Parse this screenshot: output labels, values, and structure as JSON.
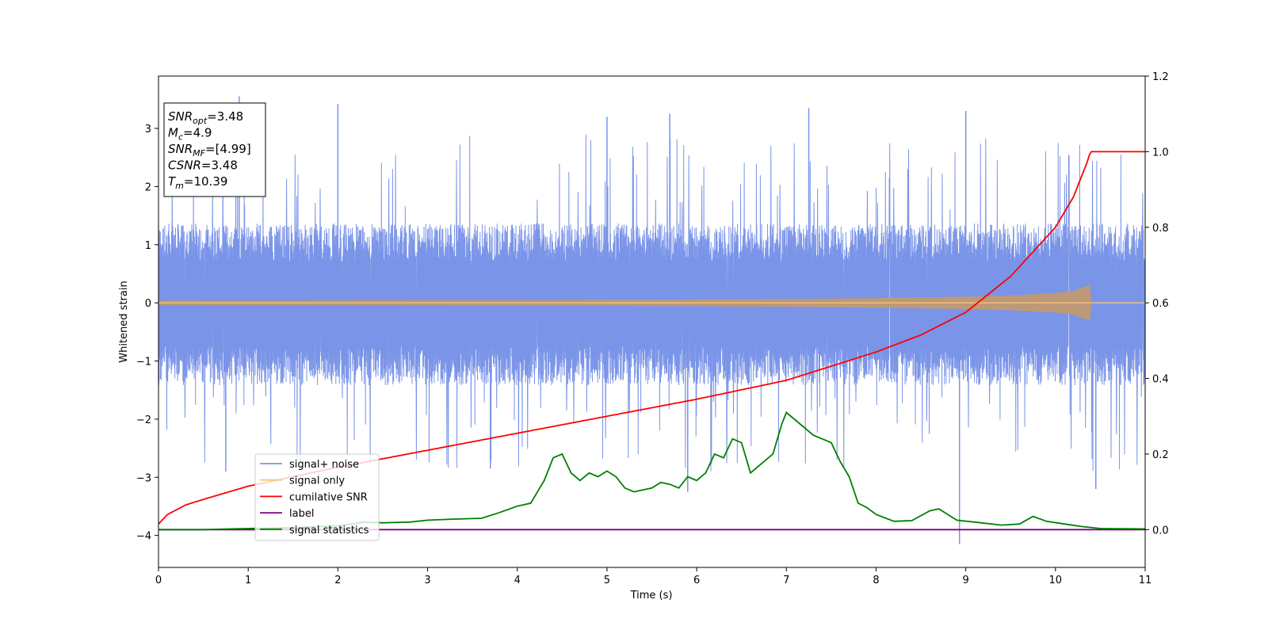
{
  "chart_data": {
    "type": "line",
    "xlabel": "Time (s)",
    "ylabel": "Whitened strain",
    "xlim": [
      0,
      11
    ],
    "ylim": [
      -4.55,
      3.9
    ],
    "y2lim": [
      -0.1,
      1.2
    ],
    "x_ticks": [
      0,
      1,
      2,
      3,
      4,
      5,
      6,
      7,
      8,
      9,
      10,
      11
    ],
    "x_tick_labels": [
      "0",
      "1",
      "2",
      "3",
      "4",
      "5",
      "6",
      "7",
      "8",
      "9",
      "10",
      "11"
    ],
    "y_ticks": [
      -4,
      -3,
      -2,
      -1,
      0,
      1,
      2,
      3
    ],
    "y_tick_labels": [
      "−4",
      "−3",
      "−2",
      "−1",
      "0",
      "1",
      "2",
      "3"
    ],
    "y2_ticks": [
      0,
      0.2,
      0.4,
      0.6,
      0.8,
      1.0,
      1.2
    ],
    "y2_tick_labels": [
      "0.0",
      "0.2",
      "0.4",
      "0.6",
      "0.8",
      "1.0",
      "1.2"
    ],
    "grid": false,
    "legend_position": "lower-left",
    "annotation": {
      "lines": [
        {
          "sym": "SNR",
          "sub": "opt",
          "val": "=3.48"
        },
        {
          "sym": "M",
          "sub": "c",
          "val": "=4.9"
        },
        {
          "sym": "SNR",
          "sub": "MF",
          "val": "=[4.99]"
        },
        {
          "sym": "CSNR",
          "sub": "",
          "val": "=3.48"
        },
        {
          "sym": "T",
          "sub": "m",
          "val": "=10.39"
        }
      ]
    },
    "series": [
      {
        "name": "signal+ noise",
        "color": "#7a94e8",
        "axis": "left",
        "kind": "noise",
        "band_envelope": {
          "x": [
            0,
            11
          ],
          "upper": [
            1.3,
            1.3
          ],
          "lower": [
            -1.35,
            -1.35
          ]
        },
        "spike_peaks": [
          {
            "x": 0.9,
            "y": 3.55
          },
          {
            "x": 2.0,
            "y": 3.42
          },
          {
            "x": 5.0,
            "y": 3.2
          },
          {
            "x": 5.7,
            "y": 3.25
          },
          {
            "x": 7.25,
            "y": 3.35
          },
          {
            "x": 9.0,
            "y": 3.3
          },
          {
            "x": 8.93,
            "y": -4.15
          },
          {
            "x": 5.9,
            "y": -3.25
          },
          {
            "x": 10.45,
            "y": -3.2
          },
          {
            "x": 3.7,
            "y": -2.85
          },
          {
            "x": 0.75,
            "y": -2.9
          }
        ]
      },
      {
        "name": "signal only",
        "color": "#f5c77a",
        "axis": "left",
        "kind": "chirp",
        "amplitude_envelope": {
          "x": [
            0,
            2,
            4,
            6,
            7,
            8,
            9,
            9.5,
            10,
            10.2,
            10.38,
            10.39,
            11
          ],
          "y": [
            0.03,
            0.035,
            0.04,
            0.05,
            0.06,
            0.075,
            0.1,
            0.12,
            0.16,
            0.2,
            0.3,
            0,
            0
          ]
        }
      },
      {
        "name": "cumilative SNR",
        "color": "#ff0000",
        "axis": "right",
        "x": [
          0,
          0.1,
          0.3,
          0.5,
          1,
          2,
          3,
          4,
          5,
          6,
          7,
          8,
          8.5,
          9,
          9.5,
          10,
          10.2,
          10.35,
          10.39,
          10.4,
          11
        ],
        "y": [
          0.015,
          0.04,
          0.065,
          0.08,
          0.115,
          0.165,
          0.21,
          0.255,
          0.3,
          0.345,
          0.395,
          0.47,
          0.515,
          0.575,
          0.67,
          0.8,
          0.88,
          0.97,
          1.0,
          1.0,
          1.0
        ]
      },
      {
        "name": "label",
        "color": "#800080",
        "axis": "right",
        "x": [
          0,
          11
        ],
        "y": [
          0,
          0
        ]
      },
      {
        "name": "signal statistics",
        "color": "#008000",
        "axis": "right",
        "x": [
          0,
          0.5,
          1,
          1.5,
          2,
          2.3,
          2.5,
          2.8,
          3.0,
          3.3,
          3.6,
          3.8,
          4.0,
          4.15,
          4.3,
          4.4,
          4.5,
          4.6,
          4.7,
          4.8,
          4.9,
          5.0,
          5.1,
          5.2,
          5.3,
          5.5,
          5.6,
          5.7,
          5.8,
          5.9,
          6.0,
          6.1,
          6.2,
          6.3,
          6.4,
          6.5,
          6.6,
          6.7,
          6.85,
          6.95,
          7.0,
          7.1,
          7.2,
          7.3,
          7.4,
          7.5,
          7.6,
          7.7,
          7.8,
          7.9,
          8.0,
          8.2,
          8.4,
          8.6,
          8.7,
          8.8,
          8.9,
          9.1,
          9.4,
          9.6,
          9.75,
          9.9,
          10.1,
          10.3,
          10.5,
          11
        ],
        "y": [
          0,
          0.0,
          0.003,
          0.005,
          0.01,
          0.02,
          0.018,
          0.02,
          0.025,
          0.028,
          0.03,
          0.045,
          0.062,
          0.07,
          0.13,
          0.19,
          0.2,
          0.15,
          0.13,
          0.15,
          0.14,
          0.155,
          0.14,
          0.11,
          0.1,
          0.11,
          0.125,
          0.12,
          0.11,
          0.14,
          0.13,
          0.15,
          0.2,
          0.19,
          0.24,
          0.23,
          0.15,
          0.17,
          0.2,
          0.28,
          0.31,
          0.29,
          0.27,
          0.25,
          0.24,
          0.23,
          0.18,
          0.14,
          0.07,
          0.058,
          0.04,
          0.022,
          0.024,
          0.05,
          0.055,
          0.04,
          0.025,
          0.02,
          0.012,
          0.015,
          0.035,
          0.022,
          0.015,
          0.008,
          0.003,
          0.002
        ]
      }
    ]
  }
}
